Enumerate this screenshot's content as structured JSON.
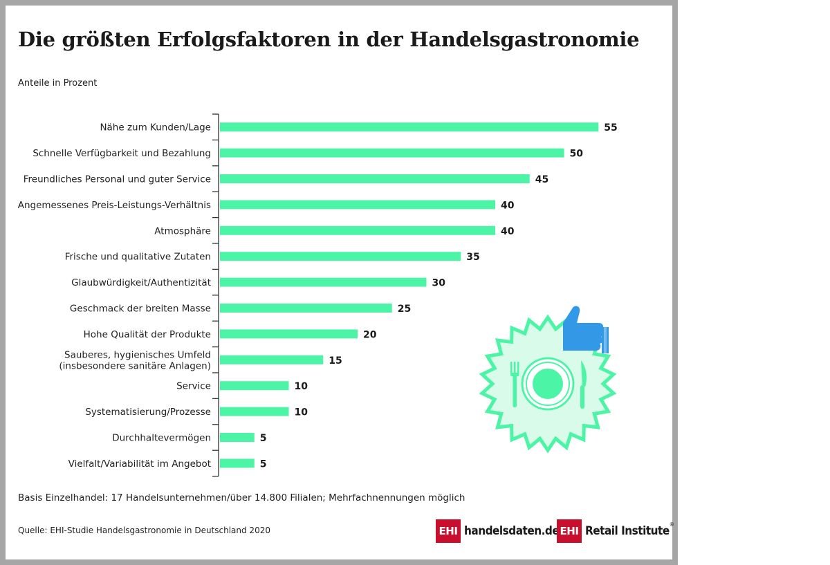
{
  "title": "Die größten Erfolgsfaktoren in der Handelsgastronomie",
  "subtitle": "Anteile in Prozent",
  "note": "Basis Einzelhandel: 17 Handelsunternehmen/über 14.800 Filialen; Mehrfachnennungen möglich",
  "source": "Quelle: EHI-Studie Handelsgastronomie in Deutschland 2020",
  "logos": {
    "left_box": "EHI",
    "left_text": "handelsdaten.de",
    "right_box": "EHI",
    "right_text": "Retail Institute",
    "right_mark": "®"
  },
  "colors": {
    "bar": "#4cf5a5",
    "brand_red": "#c8102e",
    "illustration_green": "#4cf5a5",
    "thumb_blue": "#3399e6"
  },
  "illustration_icons": [
    "starburst-badge-icon",
    "plate-icon",
    "fork-icon",
    "knife-icon",
    "thumbs-up-icon"
  ],
  "chart_data": {
    "type": "bar",
    "orientation": "horizontal",
    "title": "Die größten Erfolgsfaktoren in der Handelsgastronomie",
    "ylabel": "Anteile in Prozent",
    "xlim": [
      0,
      55
    ],
    "grid": false,
    "categories": [
      [
        "Nähe zum Kunden/Lage"
      ],
      [
        "Schnelle Verfügbarkeit und Bezahlung"
      ],
      [
        "Freundliches Personal und guter Service"
      ],
      [
        "Angemessenes Preis-Leistungs-Verhältnis"
      ],
      [
        "Atmosphäre"
      ],
      [
        "Frische und qualitative Zutaten"
      ],
      [
        "Glaubwürdigkeit/Authentizität"
      ],
      [
        "Geschmack der breiten Masse"
      ],
      [
        "Hohe Qualität der Produkte"
      ],
      [
        "Sauberes, hygienisches Umfeld",
        "(insbesondere sanitäre Anlagen)"
      ],
      [
        "Service"
      ],
      [
        "Systematisierung/Prozesse"
      ],
      [
        "Durchhaltevermögen"
      ],
      [
        "Vielfalt/Variabilität im Angebot"
      ]
    ],
    "values": [
      55,
      50,
      45,
      40,
      40,
      35,
      30,
      25,
      20,
      15,
      10,
      10,
      5,
      5
    ]
  }
}
